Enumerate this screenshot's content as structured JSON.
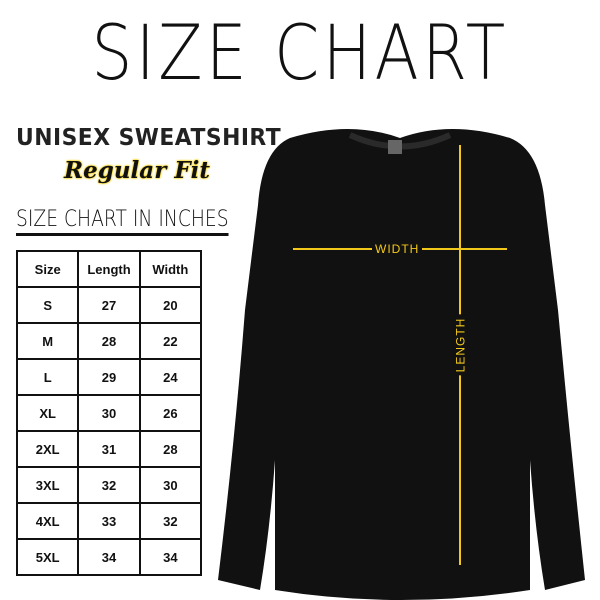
{
  "title": "SIZE CHART",
  "product": "UNISEX SWEATSHIRT",
  "fit": "Regular Fit",
  "table_title": "SIZE CHART IN INCHES",
  "headers": [
    "Size",
    "Length",
    "Width"
  ],
  "rows": [
    [
      "S",
      "27",
      "20"
    ],
    [
      "M",
      "28",
      "22"
    ],
    [
      "L",
      "29",
      "24"
    ],
    [
      "XL",
      "30",
      "26"
    ],
    [
      "2XL",
      "31",
      "28"
    ],
    [
      "3XL",
      "32",
      "30"
    ],
    [
      "4XL",
      "33",
      "32"
    ],
    [
      "5XL",
      "34",
      "34"
    ]
  ],
  "measure": {
    "width": "WIDTH",
    "length": "LENGTH"
  },
  "colors": {
    "accent": "#f2c81a",
    "garment": "#111111"
  }
}
